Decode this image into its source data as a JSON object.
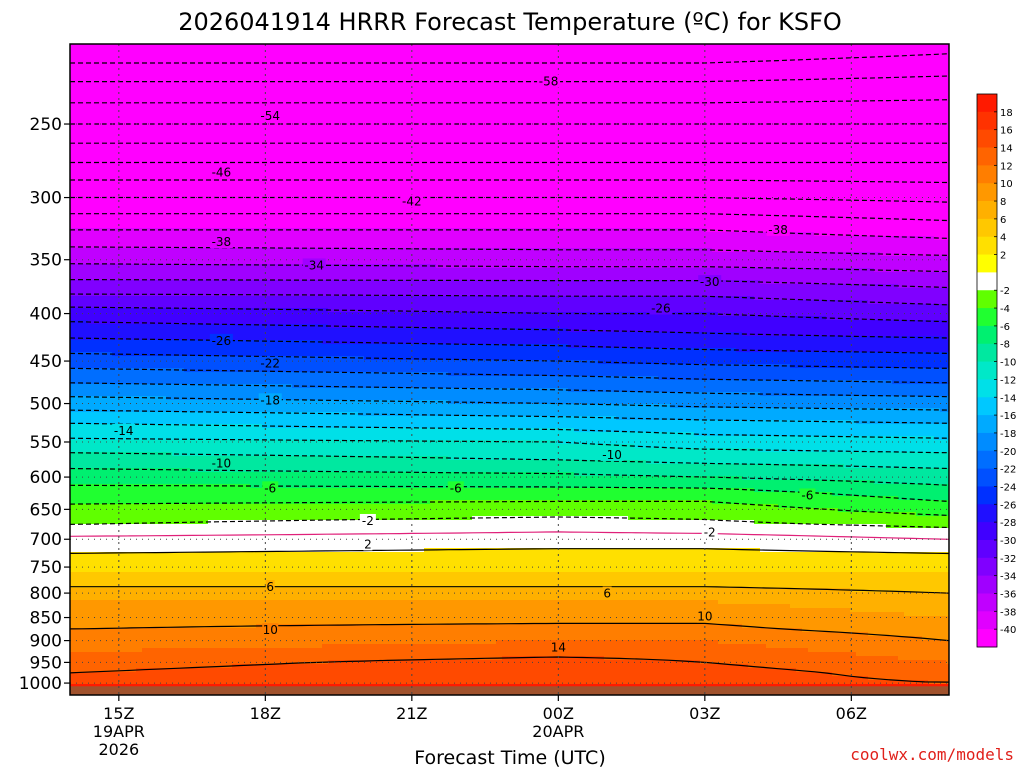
{
  "header": {
    "title": "2026041914 HRRR Forecast Temperature (ºC) for KSFO"
  },
  "credit": "coolwx.com/models",
  "chart_data": {
    "type": "heatmap",
    "title": "2026041914 HRRR Forecast Temperature (ºC) for KSFO",
    "xlabel": "Forecast Time (UTC)",
    "ylabel": "",
    "x_range_hours": [
      -1,
      17
    ],
    "x_ticks": [
      {
        "hour": 0,
        "lines": [
          "15Z",
          "19APR",
          "2026"
        ]
      },
      {
        "hour": 3,
        "lines": [
          "18Z"
        ]
      },
      {
        "hour": 6,
        "lines": [
          "21Z"
        ]
      },
      {
        "hour": 9,
        "lines": [
          "00Z",
          "20APR"
        ]
      },
      {
        "hour": 12,
        "lines": [
          "03Z"
        ]
      },
      {
        "hour": 15,
        "lines": [
          "06Z"
        ]
      }
    ],
    "y_axis": "pressure (hPa), log scale, inverted",
    "y_range": [
      1030,
      205
    ],
    "y_ticks": [
      250,
      300,
      350,
      400,
      450,
      500,
      550,
      600,
      650,
      700,
      750,
      800,
      850,
      900,
      950,
      1000
    ],
    "grid": true,
    "colorbar": {
      "placement": "right",
      "levels": [
        18,
        16,
        14,
        12,
        10,
        8,
        6,
        4,
        2,
        -2,
        -4,
        -6,
        -8,
        -10,
        -12,
        -14,
        -16,
        -18,
        -20,
        -22,
        -24,
        -26,
        -28,
        -30,
        -32,
        -34,
        -36,
        -38,
        -40
      ],
      "colors": [
        "#ff1a00",
        "#ff3200",
        "#ff4a00",
        "#ff6400",
        "#ff7e00",
        "#ff9800",
        "#ffb000",
        "#ffc800",
        "#ffe000",
        "#ffff00",
        "#ffffff",
        "#60ff00",
        "#20ff30",
        "#00f070",
        "#00e8a0",
        "#00e8c8",
        "#00e0e8",
        "#00c8ff",
        "#00aaff",
        "#008cff",
        "#006eff",
        "#0050ff",
        "#0030ff",
        "#2010ff",
        "#4000ff",
        "#6000ff",
        "#8000ff",
        "#a000ff",
        "#c000ff",
        "#e000ff",
        "#ff00ff"
      ]
    },
    "temperature_profile": {
      "pressure_hpa": [
        1010,
        1000,
        975,
        950,
        925,
        900,
        875,
        850,
        825,
        800,
        775,
        750,
        725,
        700,
        675,
        650,
        625,
        600,
        575,
        550,
        525,
        500,
        475,
        450,
        425,
        400,
        375,
        350,
        325,
        300,
        275,
        250,
        225,
        210
      ],
      "temp_c_at_times": {
        "hours": [
          -1,
          9,
          12,
          17
        ],
        "columns": [
          [
            22,
            15,
            14,
            13,
            12,
            11,
            10,
            9.5,
            8.5,
            7,
            5,
            3.5,
            2,
            0.5,
            -2,
            -3.5,
            -5,
            -7,
            -9,
            -11.5,
            -14,
            -17,
            -20,
            -23,
            -26,
            -29,
            -33,
            -36.5,
            -40,
            -44,
            -48,
            -52,
            -56,
            -59
          ],
          [
            22,
            16,
            16,
            15,
            13,
            12,
            10.5,
            9.5,
            8.5,
            7,
            5,
            3.5,
            2.5,
            1,
            -1,
            -3,
            -5,
            -7.5,
            -10,
            -12,
            -15,
            -18,
            -21,
            -24,
            -27,
            -30,
            -33,
            -37,
            -40,
            -44,
            -48,
            -52,
            -56,
            -59
          ],
          [
            22,
            15,
            15,
            14,
            13,
            12,
            10.5,
            9.5,
            8.5,
            7,
            5,
            3.5,
            2.5,
            1,
            -1.5,
            -3,
            -5,
            -8,
            -10.5,
            -13,
            -15.5,
            -18.5,
            -21.5,
            -24.5,
            -27.5,
            -30,
            -33,
            -37,
            -40,
            -44,
            -48,
            -52,
            -56,
            -59
          ],
          [
            22,
            14,
            13,
            12,
            11,
            10,
            9,
            8,
            7,
            6,
            4.5,
            3.5,
            2,
            0,
            -2.5,
            -5,
            -7,
            -9,
            -11,
            -13.5,
            -16,
            -19,
            -22,
            -25,
            -28,
            -31,
            -34,
            -37.5,
            -41,
            -44.5,
            -48,
            -52,
            -55.5,
            -58
          ]
        ]
      }
    },
    "contour_labels": [
      {
        "text": "-58",
        "hour": 8.8,
        "p": 225
      },
      {
        "text": "-54",
        "hour": 3.1,
        "p": 245
      },
      {
        "text": "-46",
        "hour": 2.1,
        "p": 282
      },
      {
        "text": "-42",
        "hour": 6.0,
        "p": 303
      },
      {
        "text": "-38",
        "hour": 2.1,
        "p": 335
      },
      {
        "text": "-38",
        "hour": 13.5,
        "p": 325
      },
      {
        "text": "-34",
        "hour": 4.0,
        "p": 355
      },
      {
        "text": "-30",
        "hour": 12.1,
        "p": 370
      },
      {
        "text": "-26",
        "hour": 2.1,
        "p": 428
      },
      {
        "text": "-26",
        "hour": 11.1,
        "p": 395
      },
      {
        "text": "-22",
        "hour": 3.1,
        "p": 453
      },
      {
        "text": "-18",
        "hour": 3.1,
        "p": 496
      },
      {
        "text": "-14",
        "hour": 0.1,
        "p": 535
      },
      {
        "text": "-10",
        "hour": 2.1,
        "p": 580
      },
      {
        "text": "-10",
        "hour": 10.1,
        "p": 568
      },
      {
        "text": "-6",
        "hour": 3.1,
        "p": 617
      },
      {
        "text": "-6",
        "hour": 6.9,
        "p": 617
      },
      {
        "text": "-6",
        "hour": 14.1,
        "p": 628
      },
      {
        "text": "-2",
        "hour": 5.1,
        "p": 669
      },
      {
        "text": "-2",
        "hour": 12.1,
        "p": 688
      },
      {
        "text": "2",
        "hour": 5.1,
        "p": 709
      },
      {
        "text": "6",
        "hour": 3.1,
        "p": 788
      },
      {
        "text": "6",
        "hour": 10.0,
        "p": 801
      },
      {
        "text": "10",
        "hour": 3.1,
        "p": 877
      },
      {
        "text": "10",
        "hour": 12.0,
        "p": 848
      },
      {
        "text": "14",
        "hour": 9.0,
        "p": 915
      }
    ]
  }
}
